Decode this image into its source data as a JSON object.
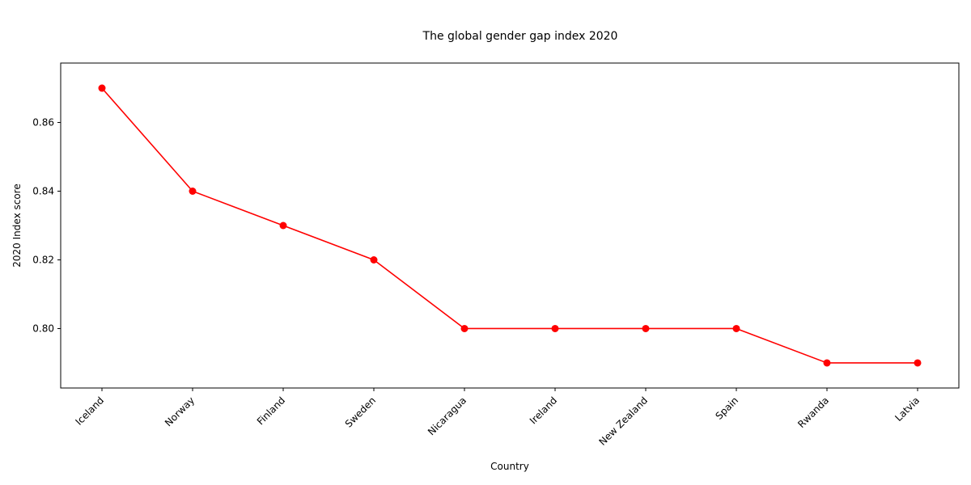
{
  "chart_data": {
    "type": "line",
    "title": "The global gender gap index 2020",
    "xlabel": "Country",
    "ylabel": "2020 Index score",
    "categories": [
      "Iceland",
      "Norway",
      "Finland",
      "Sweden",
      "Nicaragua",
      "Ireland",
      "New Zealand",
      "Spain",
      "Rwanda",
      "Latvia"
    ],
    "series": [
      {
        "values": [
          0.87,
          0.84,
          0.83,
          0.82,
          0.8,
          0.8,
          0.8,
          0.8,
          0.79,
          0.79
        ]
      }
    ],
    "yticks": [
      0.8,
      0.82,
      0.84,
      0.86
    ],
    "ytick_labels": [
      "0.80",
      "0.82",
      "0.84",
      "0.86"
    ],
    "ylim": [
      0.7827,
      0.8773
    ],
    "grid": false,
    "marker": "circle",
    "line_color": "#ff0000"
  }
}
